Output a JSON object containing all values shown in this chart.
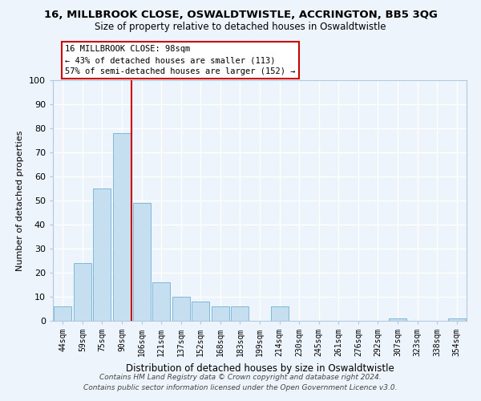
{
  "title": "16, MILLBROOK CLOSE, OSWALDTWISTLE, ACCRINGTON, BB5 3QG",
  "subtitle": "Size of property relative to detached houses in Oswaldtwistle",
  "xlabel": "Distribution of detached houses by size in Oswaldtwistle",
  "ylabel": "Number of detached properties",
  "bar_color": "#c5dff0",
  "bar_edge_color": "#7fb8d8",
  "categories": [
    "44sqm",
    "59sqm",
    "75sqm",
    "90sqm",
    "106sqm",
    "121sqm",
    "137sqm",
    "152sqm",
    "168sqm",
    "183sqm",
    "199sqm",
    "214sqm",
    "230sqm",
    "245sqm",
    "261sqm",
    "276sqm",
    "292sqm",
    "307sqm",
    "323sqm",
    "338sqm",
    "354sqm"
  ],
  "values": [
    6,
    24,
    55,
    78,
    49,
    16,
    10,
    8,
    6,
    6,
    0,
    6,
    0,
    0,
    0,
    0,
    0,
    1,
    0,
    0,
    1
  ],
  "ylim": [
    0,
    100
  ],
  "yticks": [
    0,
    10,
    20,
    30,
    40,
    50,
    60,
    70,
    80,
    90,
    100
  ],
  "property_line_x": 3.5,
  "annotation_title": "16 MILLBROOK CLOSE: 98sqm",
  "annotation_line1": "← 43% of detached houses are smaller (113)",
  "annotation_line2": "57% of semi-detached houses are larger (152) →",
  "annotation_box_color": "#ffffff",
  "annotation_box_edgecolor": "#cc0000",
  "property_line_color": "#cc0000",
  "footer1": "Contains HM Land Registry data © Crown copyright and database right 2024.",
  "footer2": "Contains public sector information licensed under the Open Government Licence v3.0.",
  "background_color": "#eef4fb",
  "grid_color": "#ffffff"
}
